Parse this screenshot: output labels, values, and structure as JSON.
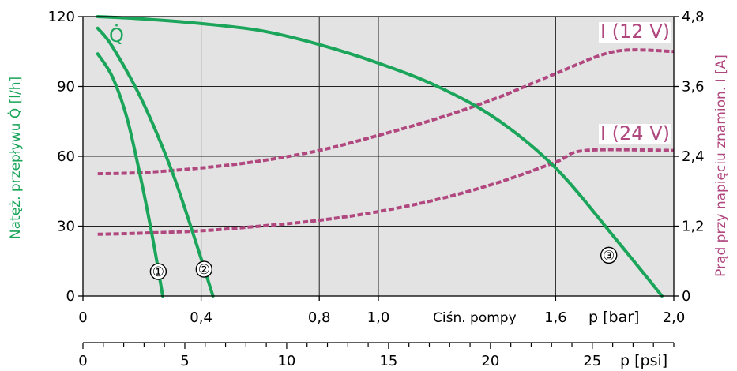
{
  "chart_data": {
    "type": "line",
    "x_unit_label": "p [bar]",
    "x_axis_title": "Ciśn. pompy",
    "x_ticks": [
      "0",
      "0,4",
      "0,8",
      "1,0",
      "1,6",
      "2,0"
    ],
    "x_tick_values": [
      0,
      0.4,
      0.8,
      1.0,
      1.6,
      2.0
    ],
    "xlim": [
      0,
      2.0
    ],
    "psi_unit_label": "p [psi]",
    "psi_ticks": [
      "0",
      "5",
      "10",
      "15",
      "20",
      "25"
    ],
    "psi_tick_values": [
      0,
      5,
      10,
      15,
      20,
      25
    ],
    "psi_lim": [
      0,
      29
    ],
    "y_left_label": "Natęż. przepływu  Q̇ [l/h]",
    "y_left_ticks": [
      "0",
      "30",
      "60",
      "90",
      "120"
    ],
    "y_left_tick_values": [
      0,
      30,
      60,
      90,
      120
    ],
    "y_left_lim": [
      0,
      120
    ],
    "y_right_label": "Prąd przy napięciu znamion.  I [A]",
    "y_right_ticks": [
      "0",
      "1,2",
      "2,4",
      "3,6",
      "4,8"
    ],
    "y_right_tick_values": [
      0,
      1.2,
      2.4,
      3.6,
      4.8
    ],
    "y_right_lim": [
      0,
      4.8
    ],
    "grid": true,
    "flow_symbol": "Q̇",
    "series": [
      {
        "name": "①",
        "axis": "left",
        "color": "#1aa55a",
        "style": "solid",
        "x": [
          0.05,
          0.1,
          0.15,
          0.2,
          0.24,
          0.27
        ],
        "y": [
          104,
          94,
          76,
          48,
          22,
          0
        ]
      },
      {
        "name": "②",
        "axis": "left",
        "color": "#1aa55a",
        "style": "solid",
        "x": [
          0.05,
          0.1,
          0.2,
          0.3,
          0.38,
          0.44
        ],
        "y": [
          115,
          107,
          84,
          54,
          24,
          0
        ]
      },
      {
        "name": "③",
        "axis": "left",
        "color": "#1aa55a",
        "style": "solid",
        "x": [
          0.05,
          0.2,
          0.4,
          0.6,
          0.8,
          1.0,
          1.2,
          1.4,
          1.6,
          1.8,
          1.96
        ],
        "y": [
          120,
          119,
          117,
          114,
          108,
          100,
          90,
          76,
          55,
          25,
          0
        ]
      },
      {
        "name": "I (12 V)",
        "axis": "right",
        "color": "#b0487f",
        "style": "dashed",
        "x": [
          0.05,
          0.2,
          0.4,
          0.6,
          0.8,
          1.0,
          1.2,
          1.4,
          1.6,
          1.8,
          2.0
        ],
        "y": [
          2.1,
          2.12,
          2.2,
          2.32,
          2.5,
          2.76,
          3.05,
          3.4,
          3.82,
          4.2,
          4.2
        ]
      },
      {
        "name": "I (24 V)",
        "axis": "right",
        "color": "#b0487f",
        "style": "dashed",
        "x": [
          0.05,
          0.2,
          0.4,
          0.6,
          0.8,
          1.0,
          1.2,
          1.4,
          1.6,
          1.7,
          2.0
        ],
        "y": [
          1.06,
          1.08,
          1.12,
          1.2,
          1.3,
          1.45,
          1.66,
          1.94,
          2.3,
          2.5,
          2.5
        ]
      }
    ]
  }
}
